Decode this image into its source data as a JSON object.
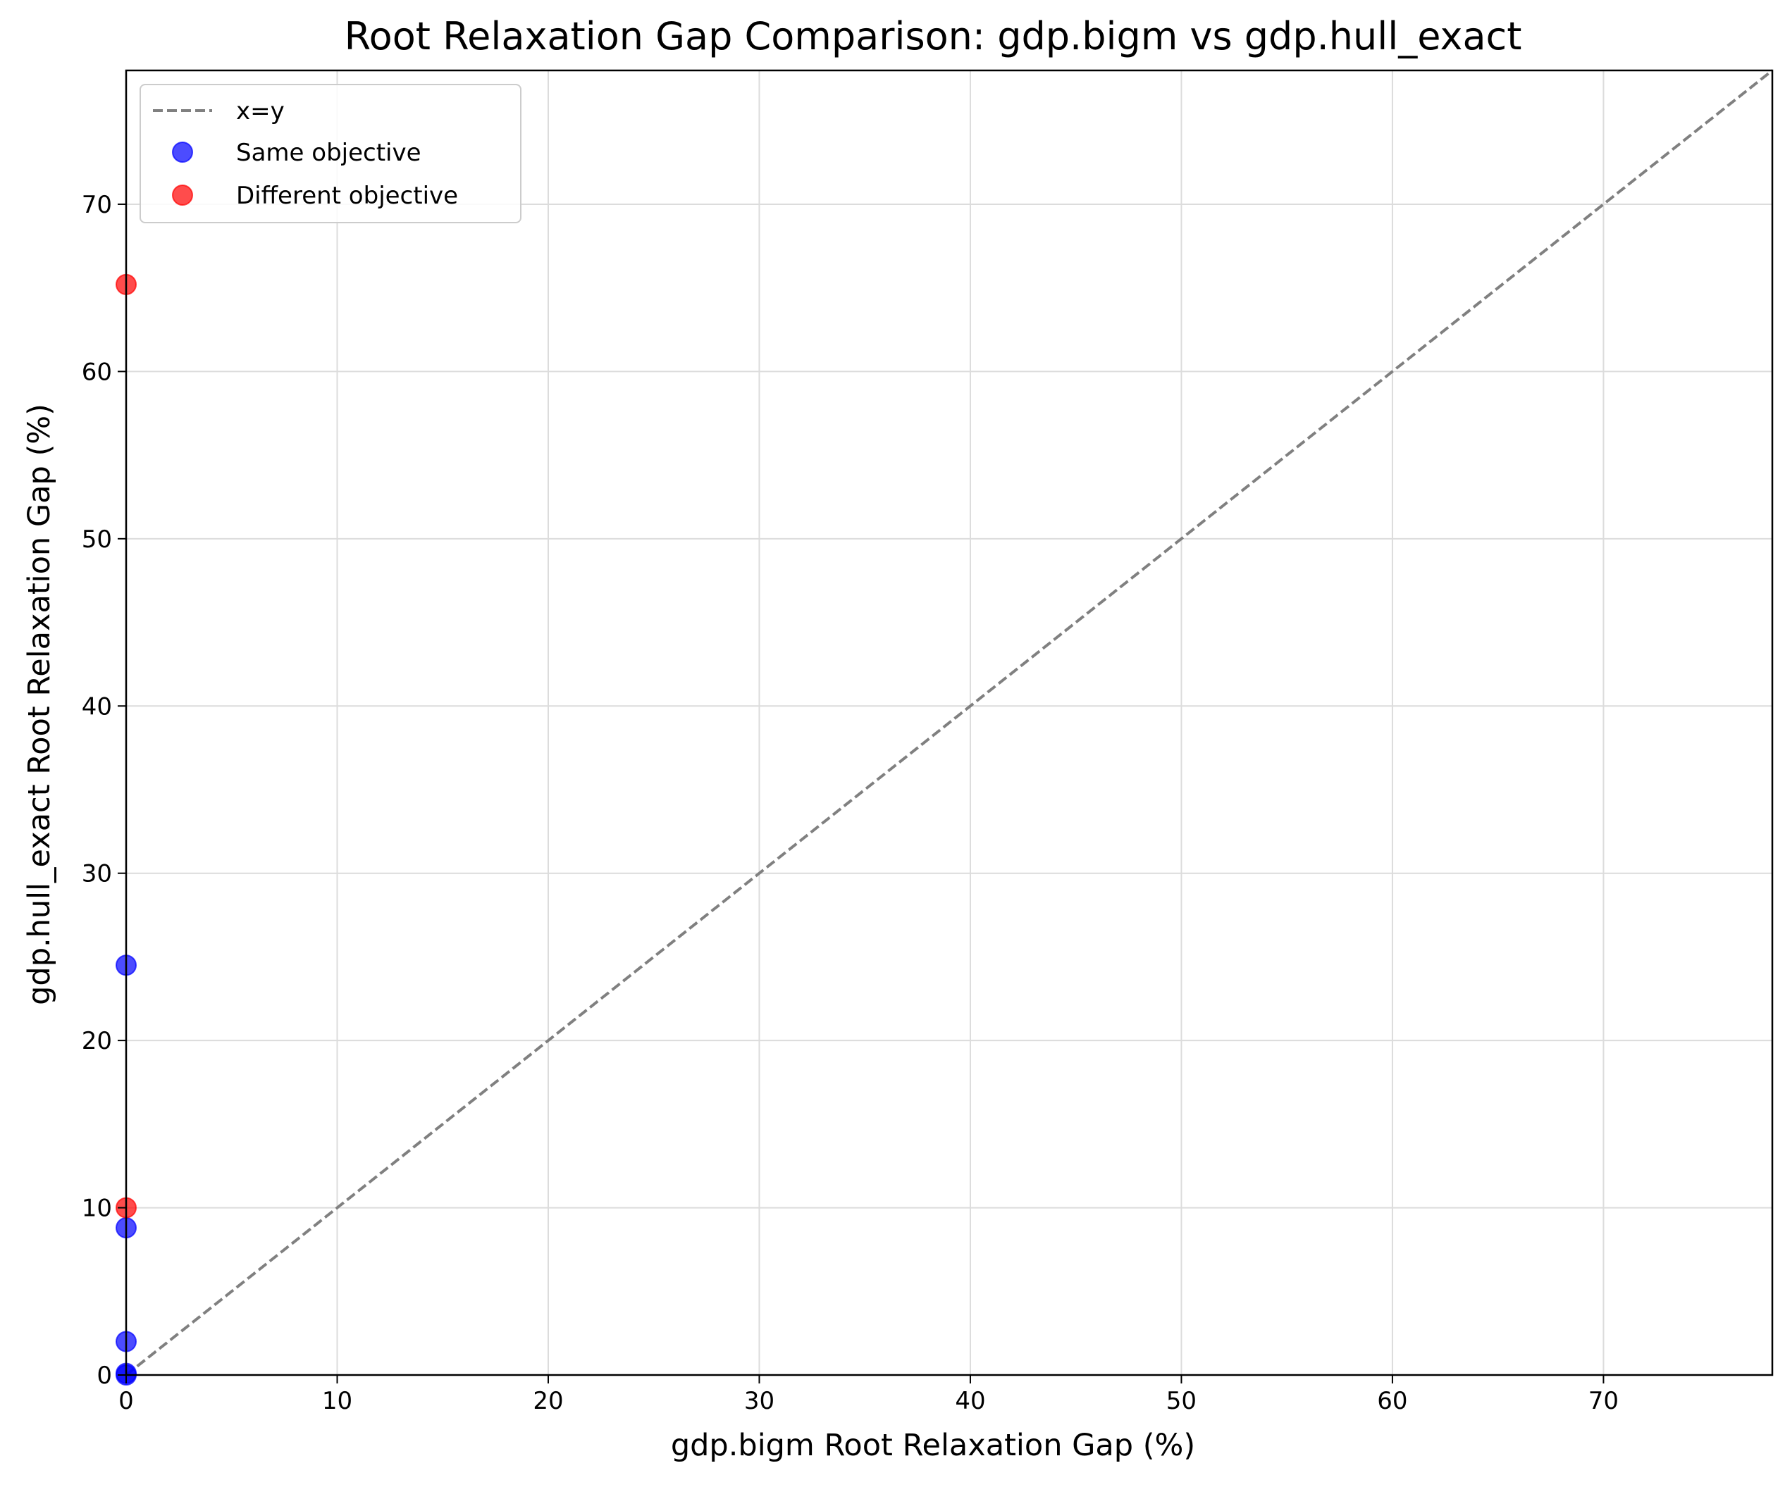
{
  "chart_data": {
    "type": "scatter",
    "title": "Root Relaxation Gap Comparison: gdp.bigm vs gdp.hull_exact",
    "xlabel": "gdp.bigm Root Relaxation Gap (%)",
    "ylabel": "gdp.hull_exact Root Relaxation Gap (%)",
    "xlim": [
      0,
      78
    ],
    "ylim": [
      0,
      78
    ],
    "xticks": [
      "0",
      "10",
      "20",
      "30",
      "40",
      "50",
      "60",
      "70"
    ],
    "yticks": [
      "0",
      "10",
      "20",
      "30",
      "40",
      "50",
      "60",
      "70"
    ],
    "grid": true,
    "legend_position": "top-left",
    "reference_line": {
      "label": "x=y",
      "color": "#808080",
      "style": "dashed"
    },
    "series": [
      {
        "name": "Same objective",
        "color": "#0000ff",
        "points": [
          [
            0,
            24.5
          ],
          [
            0,
            8.8
          ],
          [
            0,
            2.0
          ],
          [
            0,
            0.1
          ],
          [
            0,
            0.0
          ]
        ]
      },
      {
        "name": "Different objective",
        "color": "#ff0000",
        "points": [
          [
            0,
            65.2
          ],
          [
            0,
            10.0
          ]
        ]
      }
    ]
  }
}
